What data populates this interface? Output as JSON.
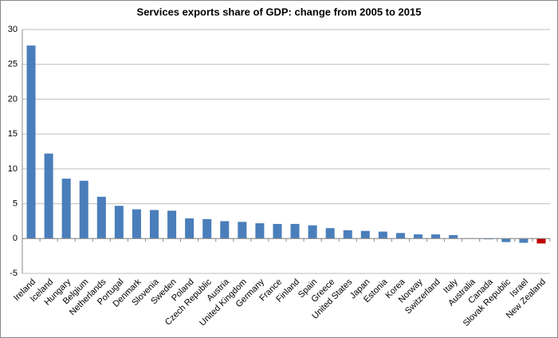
{
  "chart_data": {
    "type": "bar",
    "title": "Services exports share of GDP: change from 2005 to 2015",
    "categories": [
      "Ireland",
      "Iceland",
      "Hungary",
      "Belgium",
      "Netherlands",
      "Portugal",
      "Denmark",
      "Slovenia",
      "Sweden",
      "Poland",
      "Czech Republic",
      "Austria",
      "United Kingdom",
      "Germany",
      "France",
      "Finland",
      "Spain",
      "Greece",
      "United States",
      "Japan",
      "Estonia",
      "Korea",
      "Norway",
      "Switzerland",
      "Italy",
      "Australia",
      "Canada",
      "Slovak Republic",
      "Israel",
      "New Zealand"
    ],
    "values": [
      27.7,
      12.2,
      8.6,
      8.3,
      6.0,
      4.7,
      4.2,
      4.1,
      4.0,
      2.9,
      2.8,
      2.5,
      2.4,
      2.2,
      2.1,
      2.1,
      1.9,
      1.5,
      1.2,
      1.1,
      1.0,
      0.8,
      0.6,
      0.6,
      0.5,
      0.05,
      -0.1,
      -0.5,
      -0.6,
      -0.7
    ],
    "colors": [
      "#4a7ebb",
      "#4a7ebb",
      "#4a7ebb",
      "#4a7ebb",
      "#4a7ebb",
      "#4a7ebb",
      "#4a7ebb",
      "#4a7ebb",
      "#4a7ebb",
      "#4a7ebb",
      "#4a7ebb",
      "#4a7ebb",
      "#4a7ebb",
      "#4a7ebb",
      "#4a7ebb",
      "#4a7ebb",
      "#4a7ebb",
      "#4a7ebb",
      "#4a7ebb",
      "#4a7ebb",
      "#4a7ebb",
      "#4a7ebb",
      "#4a7ebb",
      "#4a7ebb",
      "#4a7ebb",
      "#4a7ebb",
      "#4a7ebb",
      "#4a7ebb",
      "#4a7ebb",
      "#c00000"
    ],
    "ylim": [
      -5,
      30
    ],
    "yticks": [
      -5,
      0,
      5,
      10,
      15,
      20,
      25,
      30
    ],
    "grid": true
  }
}
